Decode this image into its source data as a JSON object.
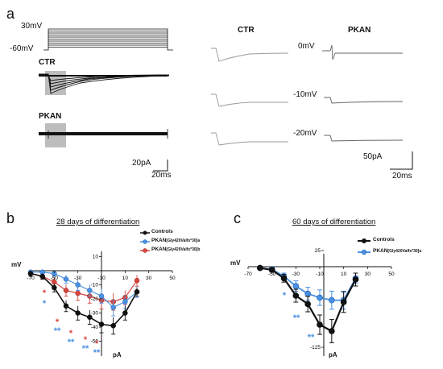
{
  "panels": {
    "a": {
      "letter": "a",
      "protocol": {
        "top_voltage": "30mV",
        "bottom_voltage": "-60mV"
      },
      "left_group_labels": {
        "ctr": "CTR",
        "pkan": "PKAN"
      },
      "left_scale": {
        "y": "20pA",
        "x": "20ms"
      },
      "right_group_labels": {
        "ctr": "CTR",
        "pkan": "PKAN"
      },
      "right_voltage_labels": [
        "0mV",
        "-10mV",
        "-20mV"
      ],
      "right_scale": {
        "y": "50pA",
        "x": "20ms"
      }
    },
    "b": {
      "letter": "b",
      "title": "28 days of differentiation",
      "axis_x_label": "mV",
      "axis_y_label": "pA",
      "x_ticks": [
        "-70",
        "-50",
        "-30",
        "-10",
        "10",
        "30",
        "50"
      ],
      "y_ticks": [
        "10",
        "-10",
        "-20",
        "-30",
        "-40",
        "-50"
      ],
      "legend": [
        {
          "label": "Controls",
          "suffix": ""
        },
        {
          "label": "PKAN",
          "suffix": "[Gly420Valfs*30]a"
        },
        {
          "label": "PKAN",
          "suffix": "[Gly420Valfs*30]b"
        }
      ]
    },
    "c": {
      "letter": "c",
      "title": "60 days of differentiation",
      "axis_x_label": "mV",
      "axis_y_label": "pA",
      "x_ticks": [
        "-70",
        "-50",
        "-30",
        "-10",
        "10",
        "30",
        "50"
      ],
      "y_ticks": [
        "25",
        "-125"
      ],
      "legend": [
        {
          "label": "Controls",
          "suffix": ""
        },
        {
          "label": "PKAN",
          "suffix": "[Gly420Valfs*30]a"
        }
      ]
    }
  },
  "colors": {
    "controls": "#111111",
    "pkan_a": "#4a90e2",
    "pkan_b": "#d9463e",
    "trace_grey": "#888888"
  },
  "chart_data": [
    {
      "type": "line",
      "title": "28 days of differentiation",
      "xlabel": "mV",
      "ylabel": "pA",
      "xlim": [
        -70,
        50
      ],
      "ylim": [
        -50,
        10
      ],
      "series": [
        {
          "name": "Controls",
          "x": [
            -70,
            -60,
            -50,
            -40,
            -30,
            -20,
            -10,
            0,
            10,
            20
          ],
          "y": [
            -2,
            -4,
            -12,
            -25,
            -30,
            -33,
            -38,
            -39,
            -30,
            -15
          ]
        },
        {
          "name": "PKAN[Gly420Valfs*30]a",
          "x": [
            -70,
            -60,
            -50,
            -40,
            -30,
            -20,
            -10,
            0,
            10,
            20
          ],
          "y": [
            -1,
            -1,
            -2,
            -6,
            -10,
            -14,
            -18,
            -26,
            -22,
            -15
          ]
        },
        {
          "name": "PKAN[Gly420Valfs*30]b",
          "x": [
            -70,
            -60,
            -50,
            -40,
            -30,
            -20,
            -10,
            0,
            10,
            20
          ],
          "y": [
            -2,
            -4,
            -8,
            -14,
            -16,
            -18,
            -21,
            -22,
            -19,
            -7
          ]
        }
      ],
      "annotations": [
        "*",
        "*",
        "**",
        "*",
        "**",
        "*",
        "**",
        "*",
        "**"
      ]
    },
    {
      "type": "line",
      "title": "60 days of differentiation",
      "xlabel": "mV",
      "ylabel": "pA",
      "xlim": [
        -70,
        50
      ],
      "ylim": [
        -125,
        25
      ],
      "series": [
        {
          "name": "Controls",
          "x": [
            -60,
            -50,
            -40,
            -30,
            -20,
            -10,
            0,
            10,
            20
          ],
          "y": [
            -2,
            -5,
            -18,
            -45,
            -58,
            -90,
            -100,
            -55,
            -20
          ]
        },
        {
          "name": "PKAN[Gly420Valfs*30]a",
          "x": [
            -60,
            -50,
            -40,
            -30,
            -20,
            -10,
            0,
            10,
            20
          ],
          "y": [
            -2,
            -4,
            -15,
            -30,
            -42,
            -48,
            -52,
            -52,
            -18
          ]
        }
      ],
      "annotations": [
        "*",
        "**",
        "**"
      ]
    }
  ]
}
